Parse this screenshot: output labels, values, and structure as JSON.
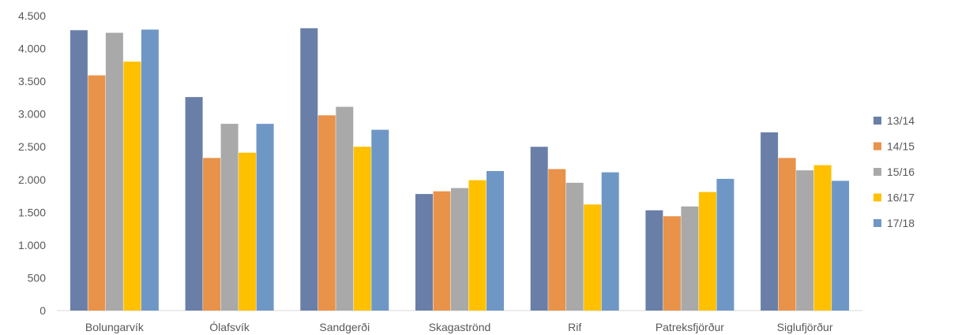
{
  "chart_data": {
    "type": "bar",
    "title": "",
    "xlabel": "",
    "ylabel": "",
    "ylim": [
      0,
      4500
    ],
    "y_ticks": [
      0,
      500,
      1000,
      1500,
      2000,
      2500,
      3000,
      3500,
      4000,
      4500
    ],
    "y_tick_labels": [
      "0",
      "500",
      "1.000",
      "1.500",
      "2.000",
      "2.500",
      "3.000",
      "3.500",
      "4.000",
      "4.500"
    ],
    "grid": false,
    "legend_position": "right",
    "categories": [
      "Bolungarvík",
      "Ólafsvík",
      "Sandgerði",
      "Skagaströnd",
      "Rif",
      "Patreksfjörður",
      "Siglufjörður"
    ],
    "series": [
      {
        "name": "13/14",
        "color": "#6a7fa8",
        "values": [
          4280,
          3260,
          4310,
          1780,
          2500,
          1530,
          2720
        ]
      },
      {
        "name": "14/15",
        "color": "#e8924a",
        "values": [
          3590,
          2330,
          2980,
          1820,
          2160,
          1440,
          2330
        ]
      },
      {
        "name": "15/16",
        "color": "#a9a9a9",
        "values": [
          4240,
          2850,
          3110,
          1870,
          1950,
          1590,
          2140
        ]
      },
      {
        "name": "16/17",
        "color": "#ffc000",
        "values": [
          3800,
          2410,
          2500,
          1990,
          1620,
          1810,
          2220
        ]
      },
      {
        "name": "17/18",
        "color": "#6f97c6",
        "values": [
          4290,
          2850,
          2760,
          2130,
          2110,
          2010,
          1980
        ]
      }
    ]
  }
}
